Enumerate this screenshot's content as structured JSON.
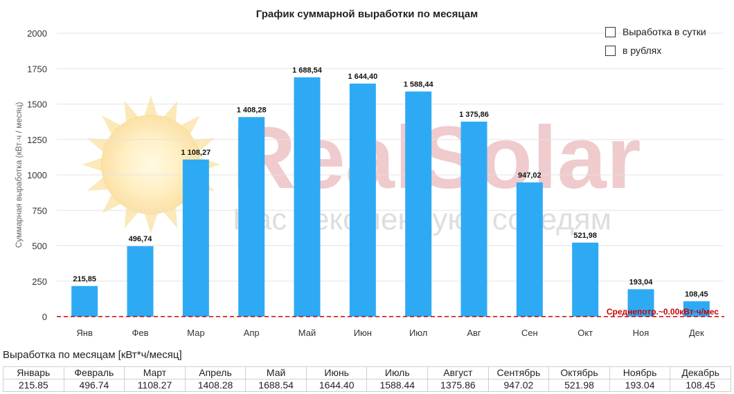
{
  "chart_data": {
    "type": "bar",
    "title": "График суммарной выработки по месяцам",
    "ylabel": "Суммарная выработка (кВт·ч / месяц)",
    "xlabel": "",
    "ylim": [
      0,
      2000
    ],
    "yticks": [
      "0",
      "250",
      "500",
      "750",
      "1000",
      "1250",
      "1500",
      "1750",
      "2000"
    ],
    "categories": [
      "Янв",
      "Фев",
      "Мар",
      "Апр",
      "Май",
      "Июн",
      "Июл",
      "Авг",
      "Сен",
      "Окт",
      "Ноя",
      "Дек"
    ],
    "values": [
      215.85,
      496.74,
      1108.27,
      1408.28,
      1688.54,
      1644.4,
      1588.44,
      1375.86,
      947.02,
      521.98,
      193.04,
      108.45
    ],
    "value_labels": [
      "215,85",
      "496,74",
      "1 108,27",
      "1 408,28",
      "1 688,54",
      "1 644,40",
      "1 588,44",
      "1 375,86",
      "947,02",
      "521,98",
      "193,04",
      "108,45"
    ],
    "avg_line": {
      "value": 0,
      "label": "Среднепотр.~0.00кВт·ч/мес",
      "color": "#cc0000"
    },
    "bar_color": "#2eaaf5",
    "grid": true,
    "legend_position": "top-right"
  },
  "watermark": {
    "brand": "RealSolar",
    "tagline": "Нас рекомендуют соседям"
  },
  "legend": {
    "items": [
      {
        "label": "Выработка в сутки",
        "checked": false
      },
      {
        "label": "в рублях",
        "checked": false
      }
    ]
  },
  "table": {
    "title": "Выработка по месяцам [кВт*ч/месяц]",
    "headers": [
      "Январь",
      "Февраль",
      "Март",
      "Апрель",
      "Май",
      "Июнь",
      "Июль",
      "Август",
      "Сентябрь",
      "Октябрь",
      "Ноябрь",
      "Декабрь"
    ],
    "values": [
      "215.85",
      "496.74",
      "1108.27",
      "1408.28",
      "1688.54",
      "1644.40",
      "1588.44",
      "1375.86",
      "947.02",
      "521.98",
      "193.04",
      "108.45"
    ]
  }
}
